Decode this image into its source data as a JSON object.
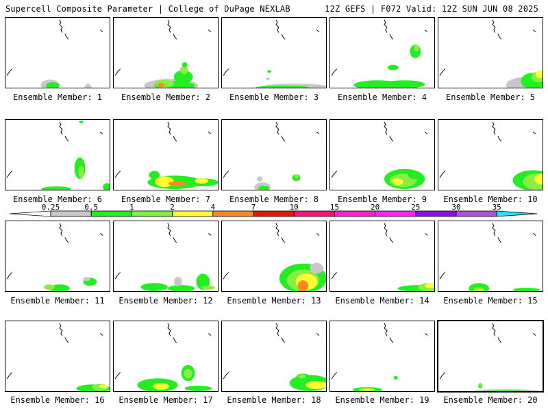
{
  "header": {
    "left": "Supercell Composite Parameter | College of DuPage NEXLAB",
    "right": "12Z GEFS | F072 Valid: 12Z SUN JUN 08 2025"
  },
  "colorbar": {
    "ticks": [
      "0.25",
      "0.5",
      "1",
      "2",
      "4",
      "7",
      "10",
      "15",
      "20",
      "25",
      "30",
      "35"
    ],
    "colors": [
      "#c8c8c8",
      "#22ee22",
      "#88ee44",
      "#ffff33",
      "#ff8822",
      "#ee1111",
      "#ff1177",
      "#ff22cc",
      "#ff22ff",
      "#8811ee",
      "#aa55dd",
      "#22e6f2"
    ]
  },
  "panels": [
    {
      "label": "Ensemble Member: 1"
    },
    {
      "label": "Ensemble Member: 2"
    },
    {
      "label": "Ensemble Member: 3"
    },
    {
      "label": "Ensemble Member: 4"
    },
    {
      "label": "Ensemble Member: 5"
    },
    {
      "label": "Ensemble Member: 6"
    },
    {
      "label": "Ensemble Member: 7"
    },
    {
      "label": "Ensemble Member: 8"
    },
    {
      "label": "Ensemble Member: 9"
    },
    {
      "label": "Ensemble Member: 10"
    },
    {
      "label": "Ensemble Member: 11"
    },
    {
      "label": "Ensemble Member: 12"
    },
    {
      "label": "Ensemble Member: 13"
    },
    {
      "label": "Ensemble Member: 14"
    },
    {
      "label": "Ensemble Member: 15"
    },
    {
      "label": "Ensemble Member: 16"
    },
    {
      "label": "Ensemble Member: 17"
    },
    {
      "label": "Ensemble Member: 18"
    },
    {
      "label": "Ensemble Member: 19"
    },
    {
      "label": "Ensemble Member: 20"
    }
  ]
}
